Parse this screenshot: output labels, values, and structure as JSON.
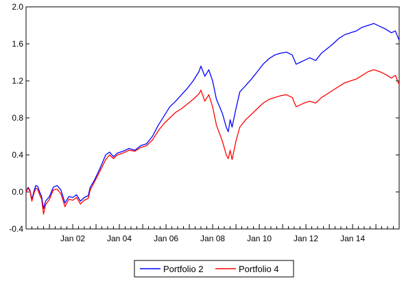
{
  "chart_data": {
    "type": "line",
    "title": "",
    "xlabel": "",
    "ylabel": "",
    "x_range": [
      "2000-01-01",
      "2015-12-31"
    ],
    "ylim": [
      -0.4,
      2.0
    ],
    "yticks": [
      -0.4,
      0.0,
      0.4,
      0.8,
      1.2,
      1.6,
      2.0
    ],
    "ytick_labels": [
      "-0.4",
      "0.0",
      "0.4",
      "0.8",
      "1.2",
      "1.6",
      "2.0"
    ],
    "xticks": [
      "2002-01-01",
      "2004-01-01",
      "2006-01-01",
      "2008-01-01",
      "2010-01-01",
      "2012-01-01",
      "2014-01-01"
    ],
    "xtick_labels": [
      "Jan 02",
      "Jan 04",
      "Jan 06",
      "Jan 08",
      "Jan 10",
      "Jan 12",
      "Jan 14"
    ],
    "grid": false,
    "legend_position": "bottom-center",
    "series": [
      {
        "name": "Portfolio 2",
        "color": "#0000ff",
        "points": [
          [
            "2000-01-01",
            0.0
          ],
          [
            "2000-02-01",
            0.05
          ],
          [
            "2000-03-01",
            0.02
          ],
          [
            "2000-04-01",
            -0.08
          ],
          [
            "2000-05-01",
            0.0
          ],
          [
            "2000-06-01",
            0.07
          ],
          [
            "2000-07-01",
            0.06
          ],
          [
            "2000-08-01",
            0.0
          ],
          [
            "2000-09-01",
            -0.05
          ],
          [
            "2000-10-01",
            -0.18
          ],
          [
            "2000-11-01",
            -0.1
          ],
          [
            "2001-01-01",
            -0.05
          ],
          [
            "2001-03-01",
            0.05
          ],
          [
            "2001-05-01",
            0.07
          ],
          [
            "2001-07-01",
            0.02
          ],
          [
            "2001-09-01",
            -0.12
          ],
          [
            "2001-11-01",
            -0.05
          ],
          [
            "2002-01-01",
            -0.06
          ],
          [
            "2002-03-01",
            -0.03
          ],
          [
            "2002-05-01",
            -0.1
          ],
          [
            "2002-07-01",
            -0.06
          ],
          [
            "2002-09-01",
            -0.04
          ],
          [
            "2002-10-01",
            0.05
          ],
          [
            "2002-12-01",
            0.12
          ],
          [
            "2003-03-01",
            0.25
          ],
          [
            "2003-06-01",
            0.4
          ],
          [
            "2003-08-01",
            0.43
          ],
          [
            "2003-10-01",
            0.38
          ],
          [
            "2003-12-01",
            0.42
          ],
          [
            "2004-03-01",
            0.44
          ],
          [
            "2004-06-01",
            0.47
          ],
          [
            "2004-09-01",
            0.45
          ],
          [
            "2004-12-01",
            0.5
          ],
          [
            "2005-03-01",
            0.52
          ],
          [
            "2005-06-01",
            0.6
          ],
          [
            "2005-09-01",
            0.72
          ],
          [
            "2005-12-01",
            0.82
          ],
          [
            "2006-03-01",
            0.92
          ],
          [
            "2006-06-01",
            0.98
          ],
          [
            "2006-09-01",
            1.05
          ],
          [
            "2006-12-01",
            1.12
          ],
          [
            "2007-03-01",
            1.2
          ],
          [
            "2007-06-01",
            1.3
          ],
          [
            "2007-07-01",
            1.36
          ],
          [
            "2007-09-01",
            1.25
          ],
          [
            "2007-11-01",
            1.32
          ],
          [
            "2008-01-01",
            1.2
          ],
          [
            "2008-03-01",
            1.0
          ],
          [
            "2008-06-01",
            0.85
          ],
          [
            "2008-08-01",
            0.7
          ],
          [
            "2008-09-01",
            0.65
          ],
          [
            "2008-10-01",
            0.78
          ],
          [
            "2008-11-01",
            0.7
          ],
          [
            "2009-01-01",
            0.9
          ],
          [
            "2009-03-01",
            1.08
          ],
          [
            "2009-06-01",
            1.15
          ],
          [
            "2009-09-01",
            1.22
          ],
          [
            "2009-12-01",
            1.3
          ],
          [
            "2010-03-01",
            1.38
          ],
          [
            "2010-06-01",
            1.44
          ],
          [
            "2010-09-01",
            1.48
          ],
          [
            "2010-12-01",
            1.5
          ],
          [
            "2011-03-01",
            1.51
          ],
          [
            "2011-06-01",
            1.48
          ],
          [
            "2011-08-01",
            1.38
          ],
          [
            "2011-10-01",
            1.4
          ],
          [
            "2011-12-01",
            1.42
          ],
          [
            "2012-03-01",
            1.45
          ],
          [
            "2012-06-01",
            1.42
          ],
          [
            "2012-09-01",
            1.5
          ],
          [
            "2012-12-01",
            1.55
          ],
          [
            "2013-03-01",
            1.6
          ],
          [
            "2013-06-01",
            1.66
          ],
          [
            "2013-09-01",
            1.7
          ],
          [
            "2013-12-01",
            1.72
          ],
          [
            "2014-03-01",
            1.74
          ],
          [
            "2014-06-01",
            1.78
          ],
          [
            "2014-09-01",
            1.8
          ],
          [
            "2014-12-01",
            1.82
          ],
          [
            "2015-03-01",
            1.79
          ],
          [
            "2015-06-01",
            1.76
          ],
          [
            "2015-09-01",
            1.72
          ],
          [
            "2015-11-01",
            1.74
          ],
          [
            "2015-12-31",
            1.64
          ]
        ]
      },
      {
        "name": "Portfolio 4",
        "color": "#ff0000",
        "points": [
          [
            "2000-01-01",
            0.0
          ],
          [
            "2000-02-01",
            0.04
          ],
          [
            "2000-03-01",
            0.01
          ],
          [
            "2000-04-01",
            -0.1
          ],
          [
            "2000-05-01",
            -0.02
          ],
          [
            "2000-06-01",
            0.04
          ],
          [
            "2000-07-01",
            0.03
          ],
          [
            "2000-08-01",
            -0.03
          ],
          [
            "2000-09-01",
            -0.08
          ],
          [
            "2000-10-01",
            -0.24
          ],
          [
            "2000-11-01",
            -0.14
          ],
          [
            "2001-01-01",
            -0.08
          ],
          [
            "2001-03-01",
            0.02
          ],
          [
            "2001-05-01",
            0.03
          ],
          [
            "2001-07-01",
            -0.02
          ],
          [
            "2001-09-01",
            -0.16
          ],
          [
            "2001-11-01",
            -0.08
          ],
          [
            "2002-01-01",
            -0.09
          ],
          [
            "2002-03-01",
            -0.06
          ],
          [
            "2002-05-01",
            -0.13
          ],
          [
            "2002-07-01",
            -0.09
          ],
          [
            "2002-09-01",
            -0.07
          ],
          [
            "2002-10-01",
            0.02
          ],
          [
            "2002-12-01",
            0.1
          ],
          [
            "2003-03-01",
            0.22
          ],
          [
            "2003-06-01",
            0.35
          ],
          [
            "2003-08-01",
            0.4
          ],
          [
            "2003-10-01",
            0.36
          ],
          [
            "2003-12-01",
            0.4
          ],
          [
            "2004-03-01",
            0.42
          ],
          [
            "2004-06-01",
            0.45
          ],
          [
            "2004-09-01",
            0.44
          ],
          [
            "2004-12-01",
            0.48
          ],
          [
            "2005-03-01",
            0.5
          ],
          [
            "2005-06-01",
            0.56
          ],
          [
            "2005-09-01",
            0.66
          ],
          [
            "2005-12-01",
            0.74
          ],
          [
            "2006-03-01",
            0.8
          ],
          [
            "2006-06-01",
            0.86
          ],
          [
            "2006-09-01",
            0.9
          ],
          [
            "2006-12-01",
            0.95
          ],
          [
            "2007-03-01",
            1.0
          ],
          [
            "2007-06-01",
            1.06
          ],
          [
            "2007-07-01",
            1.1
          ],
          [
            "2007-09-01",
            0.98
          ],
          [
            "2007-11-01",
            1.05
          ],
          [
            "2008-01-01",
            0.92
          ],
          [
            "2008-03-01",
            0.72
          ],
          [
            "2008-06-01",
            0.55
          ],
          [
            "2008-08-01",
            0.4
          ],
          [
            "2008-09-01",
            0.36
          ],
          [
            "2008-10-01",
            0.45
          ],
          [
            "2008-11-01",
            0.35
          ],
          [
            "2009-01-01",
            0.55
          ],
          [
            "2009-03-01",
            0.7
          ],
          [
            "2009-06-01",
            0.78
          ],
          [
            "2009-09-01",
            0.84
          ],
          [
            "2009-12-01",
            0.9
          ],
          [
            "2010-03-01",
            0.96
          ],
          [
            "2010-06-01",
            1.0
          ],
          [
            "2010-09-01",
            1.02
          ],
          [
            "2010-12-01",
            1.04
          ],
          [
            "2011-03-01",
            1.05
          ],
          [
            "2011-06-01",
            1.02
          ],
          [
            "2011-08-01",
            0.92
          ],
          [
            "2011-10-01",
            0.94
          ],
          [
            "2011-12-01",
            0.96
          ],
          [
            "2012-03-01",
            0.98
          ],
          [
            "2012-06-01",
            0.96
          ],
          [
            "2012-09-01",
            1.02
          ],
          [
            "2012-12-01",
            1.06
          ],
          [
            "2013-03-01",
            1.1
          ],
          [
            "2013-06-01",
            1.14
          ],
          [
            "2013-09-01",
            1.18
          ],
          [
            "2013-12-01",
            1.2
          ],
          [
            "2014-03-01",
            1.22
          ],
          [
            "2014-06-01",
            1.26
          ],
          [
            "2014-09-01",
            1.3
          ],
          [
            "2014-12-01",
            1.32
          ],
          [
            "2015-03-01",
            1.3
          ],
          [
            "2015-06-01",
            1.27
          ],
          [
            "2015-09-01",
            1.23
          ],
          [
            "2015-11-01",
            1.26
          ],
          [
            "2015-12-31",
            1.16
          ]
        ]
      }
    ]
  }
}
